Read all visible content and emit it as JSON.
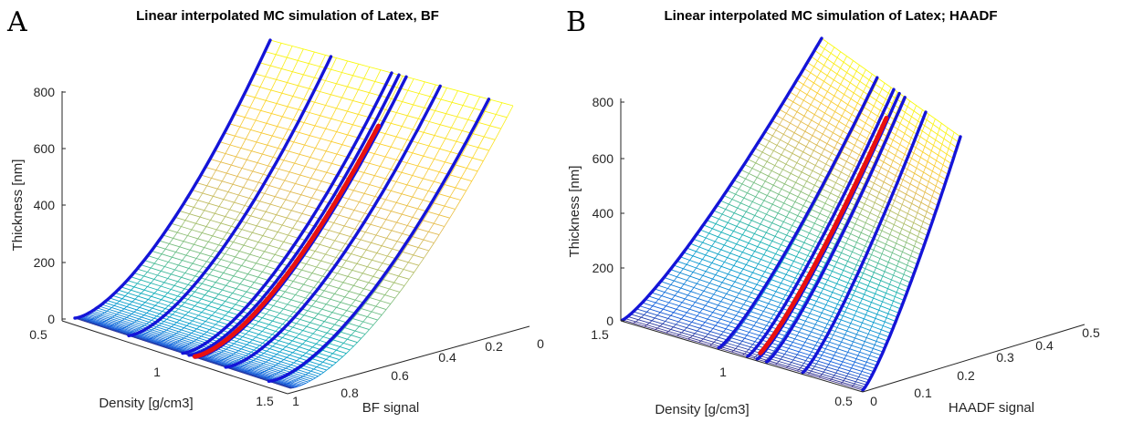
{
  "panels": [
    {
      "letter": "A"
    },
    {
      "letter": "B"
    }
  ],
  "chart_data": [
    {
      "type": "surface3d",
      "title": "Linear interpolated MC simulation of Latex, BF",
      "xlabel": "Density [g/cm3]",
      "ylabel": "BF signal",
      "zlabel": "Thickness [nm]",
      "xlim": [
        0.5,
        1.5
      ],
      "ylim": [
        0,
        1
      ],
      "zlim": [
        0,
        950
      ],
      "x_ticks": [
        "0.5",
        "1",
        "1.5"
      ],
      "y_ticks": [
        "1",
        "0.8",
        "0.6",
        "0.4",
        "0.2",
        "0"
      ],
      "z_ticks": [
        "0",
        "200",
        "400",
        "600",
        "800"
      ],
      "colormap": "parula",
      "grid": false,
      "blue_curve_densities": [
        0.5,
        0.75,
        1.0,
        1.03,
        1.06,
        1.2,
        1.4
      ],
      "red_curve_density": 1.05
    },
    {
      "type": "surface3d",
      "title": "Linear interpolated MC simulation of Latex; HAADF",
      "xlabel": "Density [g/cm3]",
      "ylabel": "HAADF signal",
      "zlabel": "Thickness [nm]",
      "xlim": [
        0.5,
        1.5
      ],
      "ylim": [
        0,
        0.5
      ],
      "zlim": [
        0,
        950
      ],
      "x_ticks": [
        "1.5",
        "1",
        "0.5"
      ],
      "y_ticks": [
        "0",
        "0.1",
        "0.2",
        "0.3",
        "0.4",
        "0.5"
      ],
      "z_ticks": [
        "0",
        "200",
        "400",
        "600",
        "800"
      ],
      "colormap": "parula",
      "grid": false,
      "blue_curve_densities": [
        1.5,
        1.25,
        1.1,
        1.06,
        1.02,
        0.9,
        0.5
      ],
      "red_curve_density": 1.05
    }
  ]
}
